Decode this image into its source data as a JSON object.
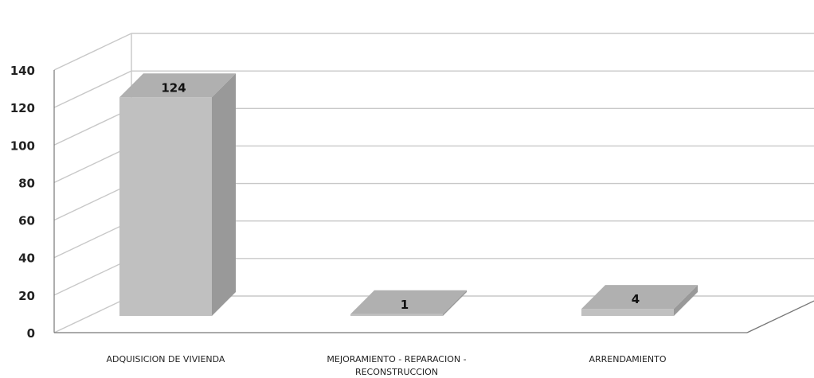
{
  "chart_data": {
    "type": "bar",
    "title": "",
    "xlabel": "",
    "ylabel": "",
    "categories": [
      [
        "ADQUISICION DE VIVIENDA"
      ],
      [
        "MEJORAMIENTO - REPARACION -",
        "RECONSTRUCCION"
      ],
      [
        "ARRENDAMIENTO"
      ]
    ],
    "values": [
      124,
      1,
      4
    ],
    "ylim": [
      0,
      140
    ],
    "yticks": [
      0,
      20,
      40,
      60,
      80,
      100,
      120,
      140
    ],
    "grid": true,
    "legend": "none",
    "style": "3d-column",
    "colors": {
      "front": "#c0c0c0",
      "top": "#b0b0b0",
      "side": "#999999",
      "grid": "#c8c8c8",
      "axis": "#777777"
    }
  }
}
